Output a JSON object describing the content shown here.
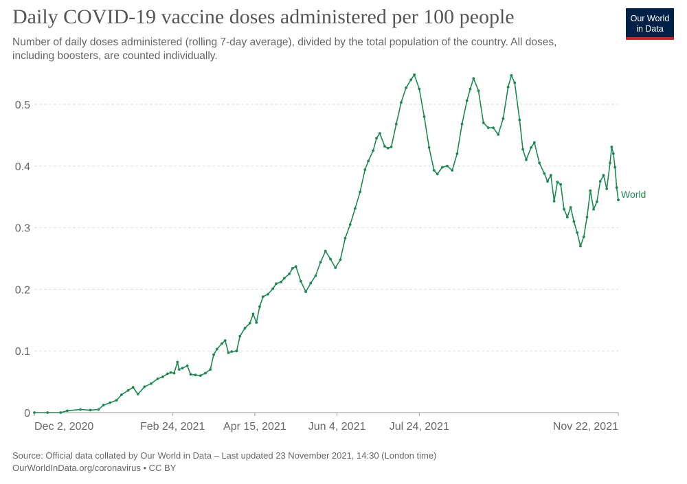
{
  "title": "Daily COVID-19 vaccine doses administered per 100 people",
  "subtitle": "Number of daily doses administered (rolling 7-day average), divided by the total population of the country. All doses, including boosters, are counted individually.",
  "logo": {
    "line1": "Our World",
    "line2": "in Data"
  },
  "footer": {
    "source": "Source: Official data collated by Our World in Data – Last updated 23 November 2021, 14:30 (London time)",
    "credit": "OurWorldInData.org/coronavirus • CC BY"
  },
  "colors": {
    "series": "#1a8a4f",
    "grid": "#dddddd",
    "axis": "#999999",
    "text": "#666666"
  },
  "chart_data": {
    "type": "line",
    "title": "Daily COVID-19 vaccine doses administered per 100 people",
    "xlabel": "",
    "ylabel": "",
    "ylim": [
      0,
      0.5
    ],
    "grid": true,
    "legend": "inline-end",
    "x_ticks": [
      {
        "date": "2020-12-02",
        "label": "Dec 2, 2020"
      },
      {
        "date": "2021-02-24",
        "label": "Feb 24, 2021"
      },
      {
        "date": "2021-04-15",
        "label": "Apr 15, 2021"
      },
      {
        "date": "2021-06-04",
        "label": "Jun 4, 2021"
      },
      {
        "date": "2021-07-24",
        "label": "Jul 24, 2021"
      },
      {
        "date": "2021-11-22",
        "label": "Nov 22, 2021"
      }
    ],
    "y_ticks": [
      {
        "value": 0,
        "label": "0"
      },
      {
        "value": 0.1,
        "label": "0.1"
      },
      {
        "value": 0.2,
        "label": "0.2"
      },
      {
        "value": 0.3,
        "label": "0.3"
      },
      {
        "value": 0.4,
        "label": "0.4"
      },
      {
        "value": 0.5,
        "label": "0.5"
      }
    ],
    "series": [
      {
        "name": "World",
        "color": "#1a8a4f",
        "points": [
          [
            "2020-12-02",
            0
          ],
          [
            "2020-12-10",
            0
          ],
          [
            "2020-12-18",
            0
          ],
          [
            "2020-12-22",
            0.003
          ],
          [
            "2020-12-30",
            0.005
          ],
          [
            "2021-01-05",
            0.004
          ],
          [
            "2021-01-10",
            0.005
          ],
          [
            "2021-01-13",
            0.012
          ],
          [
            "2021-01-17",
            0.016
          ],
          [
            "2021-01-21",
            0.02
          ],
          [
            "2021-01-24",
            0.029
          ],
          [
            "2021-01-28",
            0.036
          ],
          [
            "2021-01-31",
            0.041
          ],
          [
            "2021-02-03",
            0.03
          ],
          [
            "2021-02-07",
            0.042
          ],
          [
            "2021-02-11",
            0.047
          ],
          [
            "2021-02-15",
            0.055
          ],
          [
            "2021-02-18",
            0.058
          ],
          [
            "2021-02-21",
            0.063
          ],
          [
            "2021-02-23",
            0.065
          ],
          [
            "2021-02-25",
            0.064
          ],
          [
            "2021-02-27",
            0.082
          ],
          [
            "2021-02-28",
            0.07
          ],
          [
            "2021-03-02",
            0.072
          ],
          [
            "2021-03-05",
            0.076
          ],
          [
            "2021-03-07",
            0.062
          ],
          [
            "2021-03-10",
            0.061
          ],
          [
            "2021-03-13",
            0.06
          ],
          [
            "2021-03-16",
            0.064
          ],
          [
            "2021-03-19",
            0.07
          ],
          [
            "2021-03-21",
            0.094
          ],
          [
            "2021-03-23",
            0.103
          ],
          [
            "2021-03-26",
            0.112
          ],
          [
            "2021-03-28",
            0.117
          ],
          [
            "2021-03-30",
            0.097
          ],
          [
            "2021-04-01",
            0.099
          ],
          [
            "2021-04-04",
            0.1
          ],
          [
            "2021-04-06",
            0.124
          ],
          [
            "2021-04-09",
            0.137
          ],
          [
            "2021-04-12",
            0.145
          ],
          [
            "2021-04-14",
            0.16
          ],
          [
            "2021-04-16",
            0.146
          ],
          [
            "2021-04-18",
            0.172
          ],
          [
            "2021-04-20",
            0.188
          ],
          [
            "2021-04-23",
            0.192
          ],
          [
            "2021-04-26",
            0.201
          ],
          [
            "2021-04-28",
            0.209
          ],
          [
            "2021-05-01",
            0.212
          ],
          [
            "2021-05-03",
            0.218
          ],
          [
            "2021-05-06",
            0.225
          ],
          [
            "2021-05-08",
            0.234
          ],
          [
            "2021-05-10",
            0.237
          ],
          [
            "2021-05-13",
            0.213
          ],
          [
            "2021-05-16",
            0.196
          ],
          [
            "2021-05-19",
            0.21
          ],
          [
            "2021-05-22",
            0.222
          ],
          [
            "2021-05-25",
            0.244
          ],
          [
            "2021-05-28",
            0.262
          ],
          [
            "2021-05-31",
            0.249
          ],
          [
            "2021-06-03",
            0.235
          ],
          [
            "2021-06-06",
            0.248
          ],
          [
            "2021-06-09",
            0.283
          ],
          [
            "2021-06-12",
            0.305
          ],
          [
            "2021-06-15",
            0.331
          ],
          [
            "2021-06-18",
            0.358
          ],
          [
            "2021-06-21",
            0.394
          ],
          [
            "2021-06-23",
            0.408
          ],
          [
            "2021-06-26",
            0.425
          ],
          [
            "2021-06-28",
            0.445
          ],
          [
            "2021-06-30",
            0.453
          ],
          [
            "2021-07-03",
            0.432
          ],
          [
            "2021-07-05",
            0.429
          ],
          [
            "2021-07-07",
            0.431
          ],
          [
            "2021-07-10",
            0.468
          ],
          [
            "2021-07-13",
            0.503
          ],
          [
            "2021-07-16",
            0.527
          ],
          [
            "2021-07-19",
            0.54
          ],
          [
            "2021-07-21",
            0.548
          ],
          [
            "2021-07-24",
            0.525
          ],
          [
            "2021-07-27",
            0.48
          ],
          [
            "2021-07-30",
            0.43
          ],
          [
            "2021-08-02",
            0.393
          ],
          [
            "2021-08-04",
            0.387
          ],
          [
            "2021-08-07",
            0.398
          ],
          [
            "2021-08-10",
            0.4
          ],
          [
            "2021-08-13",
            0.393
          ],
          [
            "2021-08-16",
            0.42
          ],
          [
            "2021-08-19",
            0.468
          ],
          [
            "2021-08-22",
            0.506
          ],
          [
            "2021-08-24",
            0.525
          ],
          [
            "2021-08-26",
            0.542
          ],
          [
            "2021-08-29",
            0.522
          ],
          [
            "2021-09-01",
            0.47
          ],
          [
            "2021-09-04",
            0.462
          ],
          [
            "2021-09-07",
            0.462
          ],
          [
            "2021-09-10",
            0.451
          ],
          [
            "2021-09-13",
            0.477
          ],
          [
            "2021-09-16",
            0.528
          ],
          [
            "2021-09-18",
            0.547
          ],
          [
            "2021-09-20",
            0.535
          ],
          [
            "2021-09-23",
            0.475
          ],
          [
            "2021-09-25",
            0.427
          ],
          [
            "2021-09-27",
            0.41
          ],
          [
            "2021-09-30",
            0.43
          ],
          [
            "2021-10-02",
            0.438
          ],
          [
            "2021-10-05",
            0.405
          ],
          [
            "2021-10-08",
            0.388
          ],
          [
            "2021-10-10",
            0.375
          ],
          [
            "2021-10-12",
            0.385
          ],
          [
            "2021-10-14",
            0.343
          ],
          [
            "2021-10-16",
            0.374
          ],
          [
            "2021-10-18",
            0.37
          ],
          [
            "2021-10-20",
            0.33
          ],
          [
            "2021-10-22",
            0.317
          ],
          [
            "2021-10-24",
            0.333
          ],
          [
            "2021-10-26",
            0.31
          ],
          [
            "2021-10-28",
            0.292
          ],
          [
            "2021-10-30",
            0.27
          ],
          [
            "2021-11-01",
            0.285
          ],
          [
            "2021-11-03",
            0.317
          ],
          [
            "2021-11-05",
            0.36
          ],
          [
            "2021-11-07",
            0.33
          ],
          [
            "2021-11-09",
            0.342
          ],
          [
            "2021-11-11",
            0.375
          ],
          [
            "2021-11-13",
            0.385
          ],
          [
            "2021-11-15",
            0.363
          ],
          [
            "2021-11-17",
            0.405
          ],
          [
            "2021-11-18",
            0.431
          ],
          [
            "2021-11-19",
            0.42
          ],
          [
            "2021-11-20",
            0.398
          ],
          [
            "2021-11-21",
            0.365
          ],
          [
            "2021-11-22",
            0.345
          ]
        ]
      }
    ]
  }
}
